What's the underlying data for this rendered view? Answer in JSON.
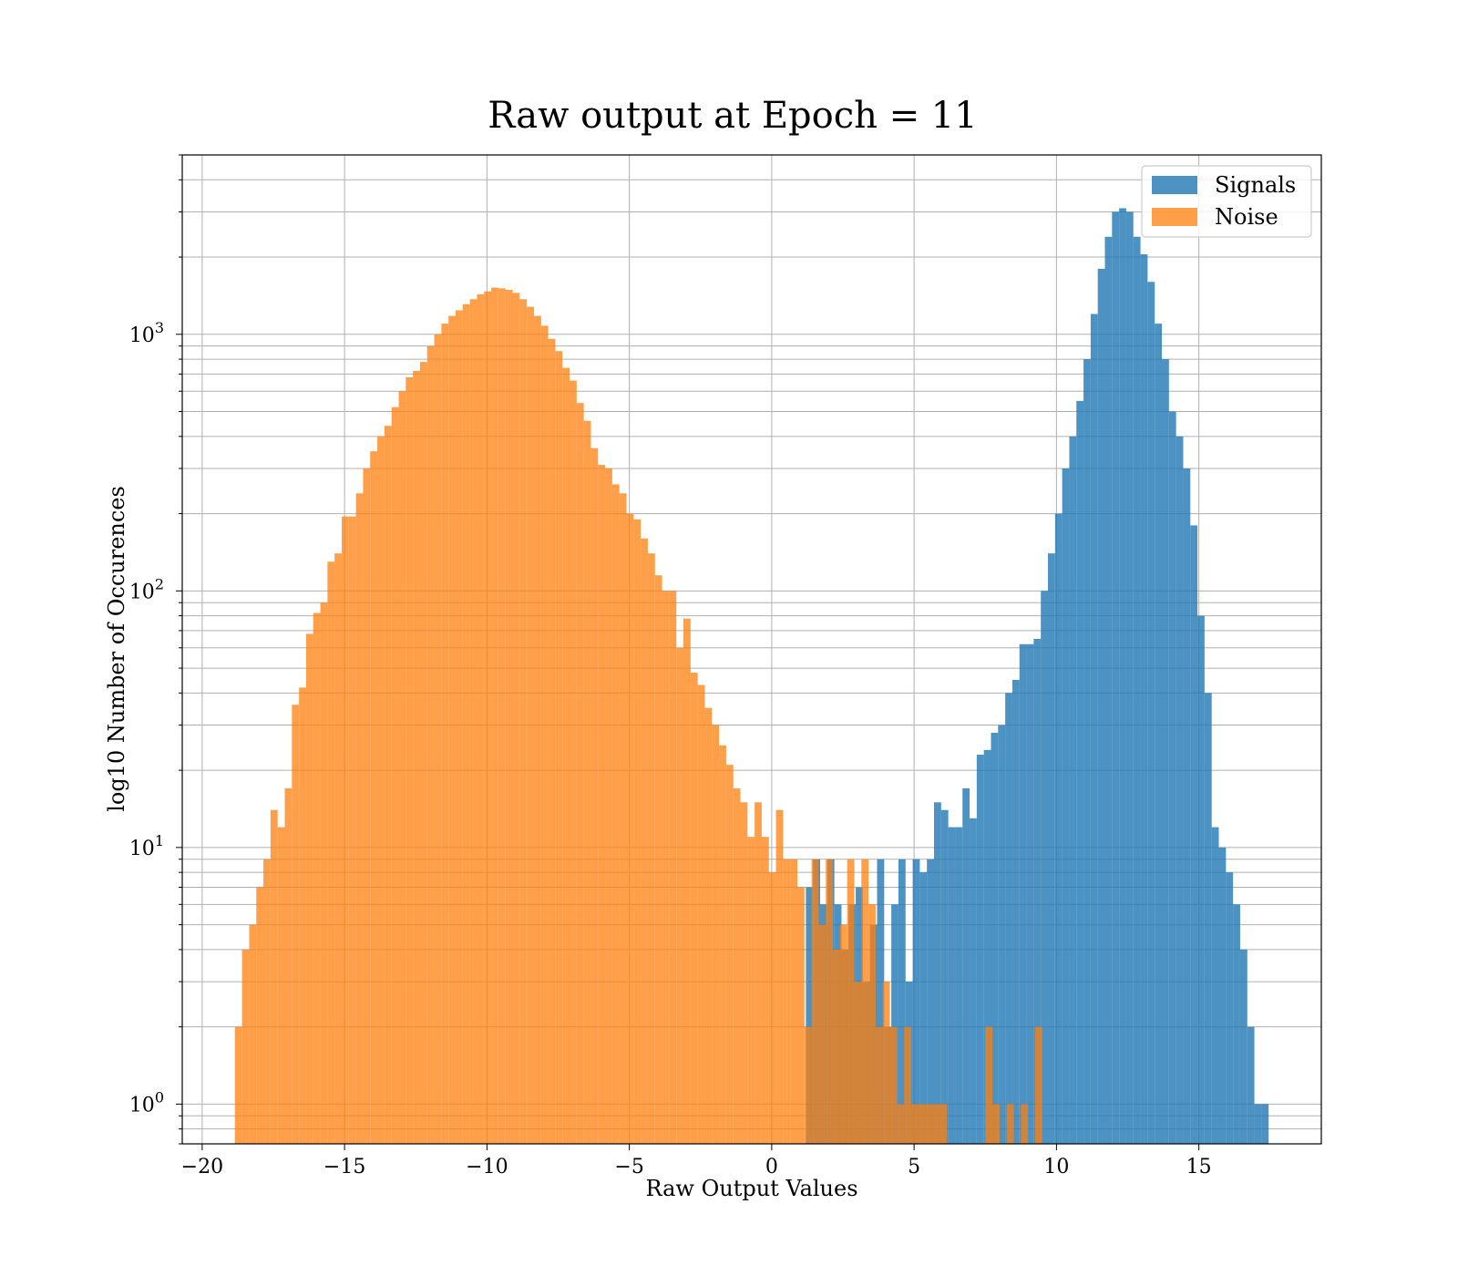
{
  "chart_data": {
    "type": "bar",
    "subtype": "histogram",
    "title": "Raw output at Epoch = 11",
    "xlabel": "Raw Output Values",
    "ylabel": "log10 Number of Occurences",
    "xlim": [
      -20.7,
      19.3
    ],
    "ylim": [
      0.7,
      5000
    ],
    "yscale": "log",
    "x_ticks": [
      "−20",
      "−15",
      "−10",
      "−5",
      "0",
      "5",
      "10",
      "15"
    ],
    "x_tick_values": [
      -20,
      -15,
      -10,
      -5,
      0,
      5,
      10,
      15
    ],
    "y_ticks": [
      {
        "base": "10",
        "exp": "0",
        "value": 1
      },
      {
        "base": "10",
        "exp": "1",
        "value": 10
      },
      {
        "base": "10",
        "exp": "2",
        "value": 100
      },
      {
        "base": "10",
        "exp": "3",
        "value": 1000
      }
    ],
    "grid": true,
    "legend_position": "top-right",
    "series": [
      {
        "name": "Signals",
        "color": "#1f77b4",
        "opacity": 0.8,
        "bins": [
          [
            1.2,
            1.45,
            7
          ],
          [
            1.45,
            1.7,
            9
          ],
          [
            1.7,
            1.95,
            6
          ],
          [
            1.95,
            2.2,
            9
          ],
          [
            2.2,
            2.45,
            6
          ],
          [
            2.45,
            2.7,
            4
          ],
          [
            2.7,
            2.95,
            6
          ],
          [
            2.95,
            3.2,
            7
          ],
          [
            3.2,
            3.45,
            3
          ],
          [
            3.45,
            3.7,
            5
          ],
          [
            3.7,
            3.95,
            9
          ],
          [
            3.95,
            4.2,
            2
          ],
          [
            4.2,
            4.45,
            6
          ],
          [
            4.45,
            4.7,
            9
          ],
          [
            4.7,
            4.95,
            3
          ],
          [
            4.95,
            5.2,
            9
          ],
          [
            5.2,
            5.45,
            8
          ],
          [
            5.45,
            5.7,
            9
          ],
          [
            5.7,
            5.95,
            15
          ],
          [
            5.95,
            6.2,
            14
          ],
          [
            6.2,
            6.45,
            12
          ],
          [
            6.45,
            6.7,
            12
          ],
          [
            6.7,
            6.95,
            17
          ],
          [
            6.95,
            7.2,
            13
          ],
          [
            7.2,
            7.45,
            23
          ],
          [
            7.45,
            7.7,
            24
          ],
          [
            7.7,
            7.95,
            28
          ],
          [
            7.95,
            8.2,
            30
          ],
          [
            8.2,
            8.45,
            40
          ],
          [
            8.45,
            8.7,
            45
          ],
          [
            8.7,
            8.95,
            62
          ],
          [
            8.95,
            9.2,
            62
          ],
          [
            9.2,
            9.45,
            65
          ],
          [
            9.45,
            9.7,
            100
          ],
          [
            9.7,
            9.95,
            140
          ],
          [
            9.95,
            10.2,
            200
          ],
          [
            10.2,
            10.45,
            300
          ],
          [
            10.45,
            10.7,
            400
          ],
          [
            10.7,
            10.95,
            550
          ],
          [
            10.95,
            11.2,
            800
          ],
          [
            11.2,
            11.45,
            1200
          ],
          [
            11.45,
            11.7,
            1800
          ],
          [
            11.7,
            11.95,
            2400
          ],
          [
            11.95,
            12.2,
            3000
          ],
          [
            12.2,
            12.45,
            3100
          ],
          [
            12.45,
            12.7,
            3000
          ],
          [
            12.7,
            12.95,
            2400
          ],
          [
            12.95,
            13.2,
            2050
          ],
          [
            13.2,
            13.45,
            1600
          ],
          [
            13.45,
            13.7,
            1100
          ],
          [
            13.7,
            13.95,
            800
          ],
          [
            13.95,
            14.2,
            500
          ],
          [
            14.2,
            14.45,
            400
          ],
          [
            14.45,
            14.7,
            300
          ],
          [
            14.7,
            14.95,
            180
          ],
          [
            14.95,
            15.2,
            80
          ],
          [
            15.2,
            15.45,
            40
          ],
          [
            15.45,
            15.7,
            12
          ],
          [
            15.7,
            15.95,
            10
          ],
          [
            15.95,
            16.2,
            8
          ],
          [
            16.2,
            16.45,
            6
          ],
          [
            16.45,
            16.7,
            4
          ],
          [
            16.7,
            16.95,
            2
          ],
          [
            16.95,
            17.2,
            1
          ],
          [
            17.2,
            17.45,
            1
          ]
        ]
      },
      {
        "name": "Noise",
        "color": "#ff7f0e",
        "opacity": 0.75,
        "bins": [
          [
            -18.85,
            -18.6,
            2
          ],
          [
            -18.6,
            -18.35,
            4
          ],
          [
            -18.35,
            -18.1,
            5
          ],
          [
            -18.1,
            -17.85,
            7
          ],
          [
            -17.85,
            -17.6,
            9
          ],
          [
            -17.6,
            -17.35,
            14
          ],
          [
            -17.35,
            -17.1,
            12
          ],
          [
            -17.1,
            -16.85,
            17
          ],
          [
            -16.85,
            -16.6,
            36
          ],
          [
            -16.6,
            -16.35,
            42
          ],
          [
            -16.35,
            -16.1,
            68
          ],
          [
            -16.1,
            -15.85,
            82
          ],
          [
            -15.85,
            -15.6,
            90
          ],
          [
            -15.6,
            -15.35,
            130
          ],
          [
            -15.35,
            -15.1,
            140
          ],
          [
            -15.1,
            -14.85,
            195
          ],
          [
            -14.85,
            -14.6,
            195
          ],
          [
            -14.6,
            -14.35,
            240
          ],
          [
            -14.35,
            -14.1,
            300
          ],
          [
            -14.1,
            -13.85,
            350
          ],
          [
            -13.85,
            -13.6,
            400
          ],
          [
            -13.6,
            -13.35,
            440
          ],
          [
            -13.35,
            -13.1,
            520
          ],
          [
            -13.1,
            -12.85,
            600
          ],
          [
            -12.85,
            -12.6,
            680
          ],
          [
            -12.6,
            -12.35,
            720
          ],
          [
            -12.35,
            -12.1,
            780
          ],
          [
            -12.1,
            -11.85,
            900
          ],
          [
            -11.85,
            -11.6,
            1000
          ],
          [
            -11.6,
            -11.35,
            1100
          ],
          [
            -11.35,
            -11.1,
            1180
          ],
          [
            -11.1,
            -10.85,
            1240
          ],
          [
            -10.85,
            -10.6,
            1310
          ],
          [
            -10.6,
            -10.35,
            1370
          ],
          [
            -10.35,
            -10.1,
            1430
          ],
          [
            -10.1,
            -9.85,
            1470
          ],
          [
            -9.85,
            -9.6,
            1520
          ],
          [
            -9.6,
            -9.35,
            1510
          ],
          [
            -9.35,
            -9.1,
            1490
          ],
          [
            -9.1,
            -8.85,
            1450
          ],
          [
            -8.85,
            -8.6,
            1370
          ],
          [
            -8.6,
            -8.35,
            1280
          ],
          [
            -8.35,
            -8.1,
            1180
          ],
          [
            -8.1,
            -7.85,
            1080
          ],
          [
            -7.85,
            -7.6,
            960
          ],
          [
            -7.6,
            -7.35,
            860
          ],
          [
            -7.35,
            -7.1,
            740
          ],
          [
            -7.1,
            -6.85,
            660
          ],
          [
            -6.85,
            -6.6,
            540
          ],
          [
            -6.6,
            -6.35,
            460
          ],
          [
            -6.35,
            -6.1,
            360
          ],
          [
            -6.1,
            -5.85,
            310
          ],
          [
            -5.85,
            -5.6,
            300
          ],
          [
            -5.6,
            -5.35,
            260
          ],
          [
            -5.35,
            -5.1,
            240
          ],
          [
            -5.1,
            -4.85,
            200
          ],
          [
            -4.85,
            -4.6,
            190
          ],
          [
            -4.6,
            -4.35,
            160
          ],
          [
            -4.35,
            -4.1,
            140
          ],
          [
            -4.1,
            -3.85,
            115
          ],
          [
            -3.85,
            -3.6,
            100
          ],
          [
            -3.6,
            -3.35,
            100
          ],
          [
            -3.35,
            -3.1,
            60
          ],
          [
            -3.1,
            -2.85,
            78
          ],
          [
            -2.85,
            -2.6,
            48
          ],
          [
            -2.6,
            -2.35,
            43
          ],
          [
            -2.35,
            -2.1,
            35
          ],
          [
            -2.1,
            -1.85,
            30
          ],
          [
            -1.85,
            -1.6,
            25
          ],
          [
            -1.6,
            -1.35,
            21
          ],
          [
            -1.35,
            -1.1,
            17
          ],
          [
            -1.1,
            -0.85,
            15
          ],
          [
            -0.85,
            -0.6,
            11
          ],
          [
            -0.6,
            -0.35,
            15
          ],
          [
            -0.35,
            -0.1,
            11
          ],
          [
            -0.1,
            0.15,
            8
          ],
          [
            0.15,
            0.4,
            14
          ],
          [
            0.4,
            0.65,
            9
          ],
          [
            0.65,
            0.9,
            9
          ],
          [
            0.9,
            1.15,
            7
          ],
          [
            1.15,
            1.4,
            2
          ],
          [
            1.4,
            1.65,
            9
          ],
          [
            1.65,
            1.9,
            5
          ],
          [
            1.9,
            2.15,
            9
          ],
          [
            2.15,
            2.4,
            4
          ],
          [
            2.4,
            2.65,
            5
          ],
          [
            2.65,
            2.9,
            9
          ],
          [
            2.9,
            3.15,
            3
          ],
          [
            3.15,
            3.4,
            9
          ],
          [
            3.4,
            3.65,
            6
          ],
          [
            3.65,
            3.9,
            2
          ],
          [
            3.9,
            4.15,
            3
          ],
          [
            4.15,
            4.4,
            2
          ],
          [
            4.4,
            4.65,
            1
          ],
          [
            4.65,
            4.9,
            2
          ],
          [
            4.9,
            5.15,
            1
          ],
          [
            5.15,
            5.4,
            1
          ],
          [
            5.4,
            5.65,
            1
          ],
          [
            5.65,
            5.9,
            1
          ],
          [
            5.9,
            6.15,
            1
          ],
          [
            7.5,
            7.75,
            2
          ],
          [
            7.75,
            8.0,
            1
          ],
          [
            8.25,
            8.5,
            1
          ],
          [
            8.75,
            9.0,
            1
          ],
          [
            9.25,
            9.5,
            2
          ]
        ]
      }
    ]
  }
}
